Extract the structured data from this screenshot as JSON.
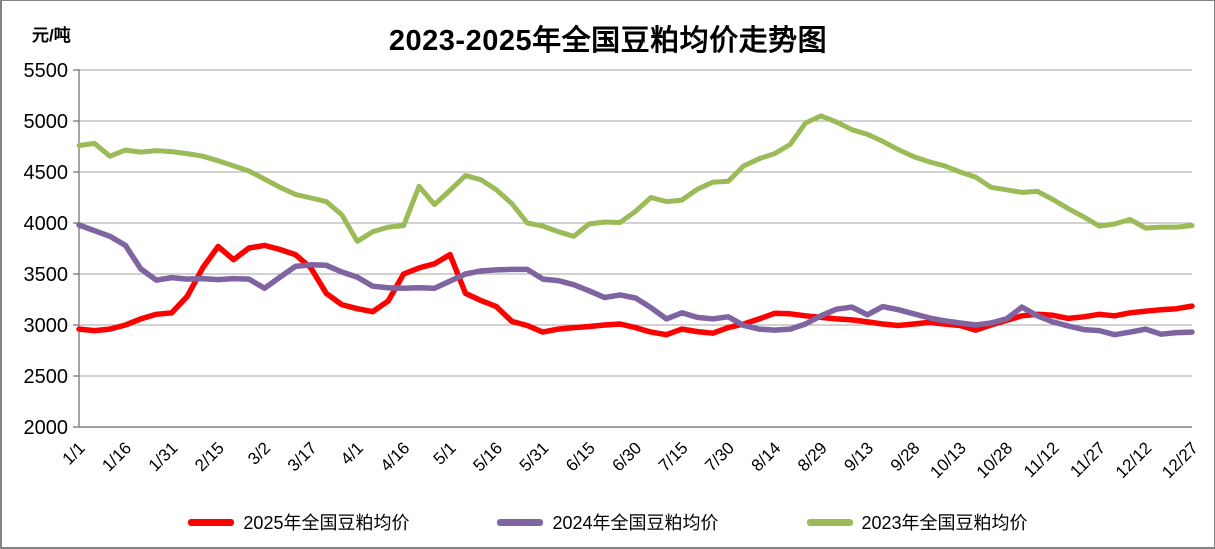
{
  "title": "2023-2025年全国豆粕均价走势图",
  "y_axis_unit": "元/吨",
  "colors": {
    "grid": "#A6A6A6",
    "axis": "#808080",
    "text": "#000000",
    "background": "#FFFFFF",
    "series_2025": "#FF0000",
    "series_2024": "#8064A2",
    "series_2023": "#9BBB59"
  },
  "chart_data": {
    "type": "line",
    "title": "2023-2025年全国豆粕均价走势图",
    "xlabel": "",
    "ylabel": "元/吨",
    "ylim": [
      2000,
      5500
    ],
    "y_ticks": [
      5500,
      5000,
      4500,
      4000,
      3500,
      3000,
      2500,
      2000
    ],
    "grid": true,
    "legend_position": "bottom",
    "x_tick_labels": [
      "1/1",
      "1/16",
      "1/31",
      "2/15",
      "3/2",
      "3/17",
      "4/1",
      "4/16",
      "5/1",
      "5/16",
      "5/31",
      "6/15",
      "6/30",
      "7/15",
      "7/30",
      "8/14",
      "8/29",
      "9/13",
      "9/28",
      "10/13",
      "10/28",
      "11/12",
      "11/27",
      "12/12",
      "12/27"
    ],
    "x": [
      "1/1",
      "1/6",
      "1/11",
      "1/16",
      "1/21",
      "1/26",
      "1/31",
      "2/5",
      "2/10",
      "2/15",
      "2/20",
      "2/25",
      "3/2",
      "3/7",
      "3/12",
      "3/17",
      "3/22",
      "3/27",
      "4/1",
      "4/6",
      "4/11",
      "4/16",
      "4/21",
      "4/26",
      "5/1",
      "5/6",
      "5/11",
      "5/16",
      "5/21",
      "5/26",
      "5/31",
      "6/5",
      "6/10",
      "6/15",
      "6/20",
      "6/25",
      "6/30",
      "7/5",
      "7/10",
      "7/15",
      "7/20",
      "7/25",
      "7/30",
      "8/4",
      "8/9",
      "8/14",
      "8/19",
      "8/24",
      "8/29",
      "9/3",
      "9/8",
      "9/13",
      "9/18",
      "9/23",
      "9/28",
      "10/3",
      "10/8",
      "10/13",
      "10/18",
      "10/23",
      "10/28",
      "11/2",
      "11/7",
      "11/12",
      "11/17",
      "11/22",
      "11/27",
      "12/2",
      "12/7",
      "12/12",
      "12/17",
      "12/22",
      "12/27"
    ],
    "series": [
      {
        "name": "2025年全国豆粕均价",
        "color": "#FF0000",
        "stroke_width": 5.5,
        "values": [
          2960,
          2945,
          2960,
          3000,
          3060,
          3105,
          3120,
          3280,
          3560,
          3770,
          3640,
          3755,
          3780,
          3740,
          3690,
          3560,
          3310,
          3200,
          3160,
          3130,
          3235,
          3500,
          3560,
          3600,
          3690,
          3310,
          3240,
          3180,
          3035,
          2995,
          2930,
          2960,
          2975,
          2985,
          3000,
          3010,
          2975,
          2930,
          2905,
          2960,
          2935,
          2920,
          2975,
          3010,
          3060,
          3115,
          3110,
          3090,
          3075,
          3060,
          3050,
          3030,
          3010,
          2995,
          3010,
          3025,
          3010,
          2995,
          2950,
          3000,
          3045,
          3090,
          3105,
          3095,
          3065,
          3080,
          3105,
          3090,
          3120,
          3135,
          3150,
          3160,
          3185
        ]
      },
      {
        "name": "2024年全国豆粕均价",
        "color": "#8064A2",
        "stroke_width": 5.5,
        "values": [
          3980,
          3925,
          3870,
          3780,
          3550,
          3440,
          3465,
          3450,
          3455,
          3445,
          3455,
          3450,
          3360,
          3470,
          3575,
          3590,
          3585,
          3520,
          3470,
          3380,
          3365,
          3360,
          3365,
          3360,
          3430,
          3500,
          3530,
          3540,
          3545,
          3545,
          3450,
          3435,
          3395,
          3335,
          3270,
          3295,
          3265,
          3170,
          3060,
          3120,
          3075,
          3060,
          3080,
          2995,
          2960,
          2950,
          2960,
          3010,
          3090,
          3155,
          3175,
          3100,
          3180,
          3150,
          3110,
          3070,
          3040,
          3020,
          3000,
          3020,
          3060,
          3175,
          3090,
          3030,
          2990,
          2955,
          2945,
          2905,
          2930,
          2960,
          2910,
          2925,
          2930
        ]
      },
      {
        "name": "2023年全国豆粕均价",
        "color": "#9BBB59",
        "stroke_width": 5,
        "values": [
          4760,
          4780,
          4655,
          4715,
          4695,
          4710,
          4700,
          4680,
          4655,
          4610,
          4560,
          4510,
          4430,
          4350,
          4280,
          4245,
          4210,
          4080,
          3820,
          3915,
          3960,
          3975,
          4360,
          4180,
          4320,
          4465,
          4425,
          4325,
          4190,
          4000,
          3970,
          3915,
          3870,
          3990,
          4010,
          4005,
          4115,
          4250,
          4210,
          4225,
          4330,
          4400,
          4410,
          4560,
          4630,
          4680,
          4770,
          4980,
          5050,
          4990,
          4915,
          4870,
          4800,
          4720,
          4650,
          4600,
          4560,
          4500,
          4450,
          4350,
          4325,
          4300,
          4310,
          4230,
          4140,
          4060,
          3970,
          3990,
          4035,
          3950,
          3960,
          3960,
          3975
        ]
      }
    ]
  }
}
